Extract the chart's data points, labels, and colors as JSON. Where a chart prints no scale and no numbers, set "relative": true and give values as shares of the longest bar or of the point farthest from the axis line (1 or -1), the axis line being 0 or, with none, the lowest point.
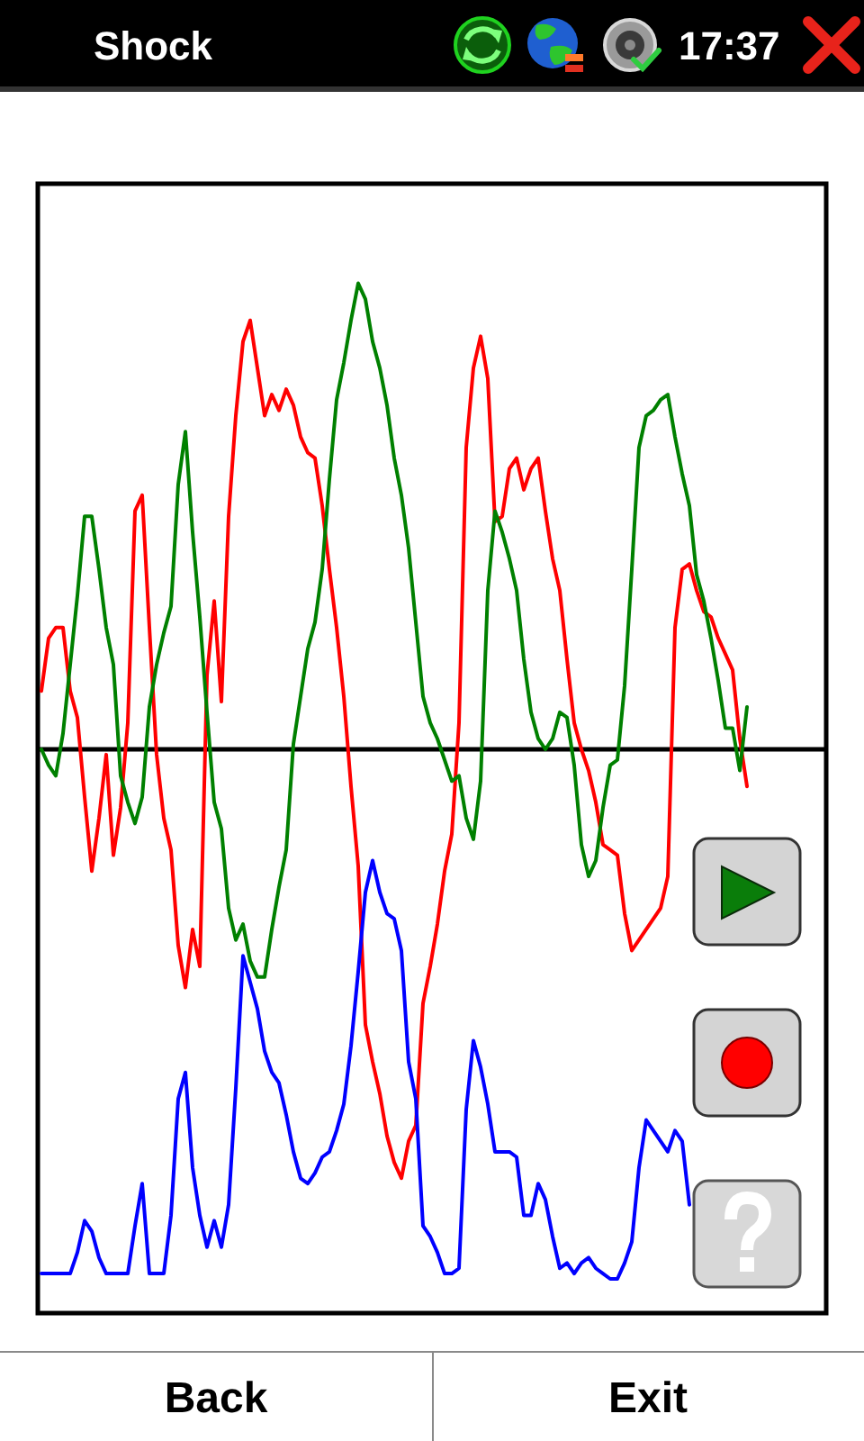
{
  "chart_data": {
    "type": "line",
    "title": "Shock",
    "annotations": [
      "17:37",
      "Back",
      "Exit"
    ],
    "relative": true,
    "categories": [
      null,
      null,
      null,
      null,
      null,
      null,
      null,
      null,
      null,
      null,
      null,
      null,
      null,
      null,
      null,
      null,
      null,
      null,
      null,
      null,
      null,
      null,
      null,
      null,
      null,
      null,
      null,
      null,
      null,
      null,
      null,
      null,
      null,
      null,
      null,
      null,
      null,
      null,
      null,
      null,
      null,
      null,
      null,
      null,
      null,
      null,
      null,
      null,
      null,
      null,
      null,
      null,
      null,
      null,
      null,
      null,
      null,
      null,
      null,
      null,
      null,
      null,
      null,
      null,
      null,
      null,
      null,
      null,
      null,
      null,
      null,
      null,
      null,
      null,
      null,
      null,
      null,
      null,
      null,
      null,
      null,
      null,
      null,
      null,
      null,
      null,
      null,
      null,
      null,
      null,
      null,
      null,
      null,
      null,
      null,
      null,
      null,
      null,
      null
    ],
    "series": [
      {
        "color": "#ff0000",
        "values": [
          0.11,
          0.21,
          0.23,
          0.23,
          0.11,
          0.06,
          -0.09,
          -0.23,
          -0.13,
          -0.01,
          -0.2,
          -0.11,
          0.05,
          0.45,
          0.48,
          0.23,
          -0.01,
          -0.13,
          -0.19,
          -0.37,
          -0.45,
          -0.34,
          -0.41,
          0.14,
          0.28,
          0.09,
          0.44,
          0.63,
          0.77,
          0.81,
          0.72,
          0.63,
          0.67,
          0.64,
          0.68,
          0.65,
          0.59,
          0.56,
          0.55,
          0.46,
          0.34,
          0.23,
          0.1,
          -0.07,
          -0.22,
          -0.52,
          -0.59,
          -0.65,
          -0.73,
          -0.78,
          -0.81,
          -0.74,
          -0.71,
          -0.48,
          -0.41,
          -0.33,
          -0.23,
          -0.16,
          0.05,
          0.57,
          0.72,
          0.78,
          0.7,
          0.43,
          0.44,
          0.53,
          0.55,
          0.49,
          0.53,
          0.55,
          0.45,
          0.36,
          0.3,
          0.17,
          0.05,
          0.0,
          -0.04,
          -0.1,
          -0.18,
          -0.19,
          -0.2,
          -0.31,
          -0.38,
          -0.36,
          -0.34,
          -0.32,
          -0.3,
          -0.24,
          0.23,
          0.34,
          0.35,
          0.3,
          0.26,
          0.25,
          0.21,
          0.18,
          0.15,
          0.02,
          -0.07
        ]
      },
      {
        "color": "#008000",
        "values": [
          0.0,
          -0.03,
          -0.05,
          0.03,
          0.16,
          0.29,
          0.44,
          0.44,
          0.34,
          0.23,
          0.16,
          -0.05,
          -0.1,
          -0.14,
          -0.09,
          0.08,
          0.16,
          0.22,
          0.27,
          0.5,
          0.6,
          0.41,
          0.25,
          0.07,
          -0.1,
          -0.15,
          -0.3,
          -0.36,
          -0.33,
          -0.4,
          -0.43,
          -0.43,
          -0.34,
          -0.26,
          -0.19,
          0.01,
          0.1,
          0.19,
          0.24,
          0.34,
          0.51,
          0.66,
          0.73,
          0.81,
          0.88,
          0.85,
          0.77,
          0.72,
          0.65,
          0.55,
          0.48,
          0.38,
          0.24,
          0.1,
          0.05,
          0.02,
          -0.02,
          -0.06,
          -0.05,
          -0.13,
          -0.17,
          -0.06,
          0.3,
          0.45,
          0.41,
          0.36,
          0.3,
          0.17,
          0.07,
          0.02,
          0.0,
          0.02,
          0.07,
          0.06,
          -0.03,
          -0.18,
          -0.24,
          -0.21,
          -0.11,
          -0.03,
          -0.02,
          0.12,
          0.34,
          0.57,
          0.63,
          0.64,
          0.66,
          0.67,
          0.59,
          0.52,
          0.46,
          0.33,
          0.28,
          0.21,
          0.13,
          0.04,
          0.04,
          -0.04,
          0.08
        ]
      },
      {
        "color": "#0000ff",
        "values": [
          -0.99,
          -0.99,
          -0.99,
          -0.99,
          -0.99,
          -0.95,
          -0.89,
          -0.91,
          -0.96,
          -0.99,
          -0.99,
          -0.99,
          -0.99,
          -0.9,
          -0.82,
          -0.99,
          -0.99,
          -0.99,
          -0.88,
          -0.66,
          -0.61,
          -0.79,
          -0.88,
          -0.94,
          -0.89,
          -0.94,
          -0.86,
          -0.64,
          -0.39,
          -0.44,
          -0.49,
          -0.57,
          -0.61,
          -0.63,
          -0.69,
          -0.76,
          -0.81,
          -0.82,
          -0.8,
          -0.77,
          -0.76,
          -0.72,
          -0.67,
          -0.56,
          -0.42,
          -0.27,
          -0.21,
          -0.27,
          -0.31,
          -0.32,
          -0.38,
          -0.59,
          -0.66,
          -0.9,
          -0.92,
          -0.95,
          -0.99,
          -0.99,
          -0.98,
          -0.68,
          -0.55,
          -0.6,
          -0.67,
          -0.76,
          -0.76,
          -0.76,
          -0.77,
          -0.88,
          -0.88,
          -0.82,
          -0.85,
          -0.92,
          -0.98,
          -0.97,
          -0.99,
          -0.97,
          -0.96,
          -0.98,
          -0.99,
          -1.0,
          -1.0,
          -0.97,
          -0.93,
          -0.79,
          -0.7,
          -0.72,
          -0.74,
          -0.76,
          -0.72,
          -0.74,
          -0.86,
          null,
          null,
          null,
          null,
          null,
          null,
          null,
          null
        ]
      }
    ]
  }
}
